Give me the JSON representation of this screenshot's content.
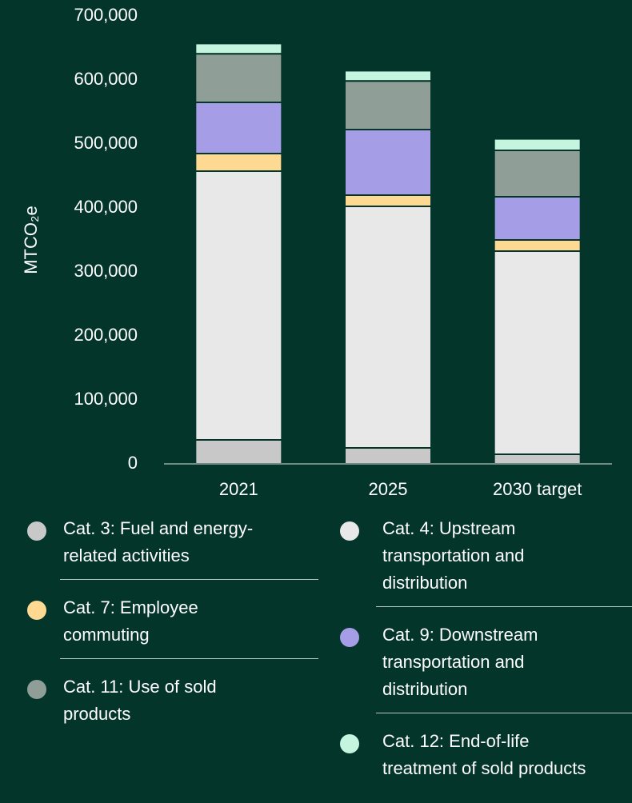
{
  "chart_data": {
    "type": "bar",
    "stacked": true,
    "y_label": "MTCO₂e",
    "categories": [
      "2021",
      "2025",
      "2030 target"
    ],
    "series": [
      {
        "name": "Cat. 3: Fuel and energy-related activities",
        "color": "#c8c8c8",
        "values": [
          37500,
          25000,
          15000
        ]
      },
      {
        "name": "Cat. 4: Upstream transportation and distribution",
        "color": "#e8e8e8",
        "values": [
          420000,
          377500,
          317500
        ]
      },
      {
        "name": "Cat. 7: Employee commuting",
        "color": "#fdd991",
        "values": [
          27500,
          17500,
          17500
        ]
      },
      {
        "name": "Cat. 9: Downstream transportation and distribution",
        "color": "#a59ee6",
        "values": [
          80000,
          102500,
          67500
        ]
      },
      {
        "name": "Cat. 11: Use of sold products",
        "color": "#8f9e96",
        "values": [
          76000,
          76000,
          72500
        ]
      },
      {
        "name": "Cat. 12: End-of-life treatment of sold products",
        "color": "#c5f5de",
        "values": [
          16000,
          16000,
          18000
        ]
      }
    ],
    "ylim": [
      0,
      700000
    ],
    "yticks": [
      0,
      {
        "value": 100000,
        "label": "100,000"
      },
      {
        "value": 200000,
        "label": "200,000"
      },
      {
        "value": 300000,
        "label": "300,000"
      },
      {
        "value": 400000,
        "label": "400,000"
      },
      {
        "value": 500000,
        "label": "500,000"
      },
      {
        "value": 600000,
        "label": "600,000"
      },
      {
        "value": 700000,
        "label": "700,000"
      }
    ],
    "grid": false
  }
}
